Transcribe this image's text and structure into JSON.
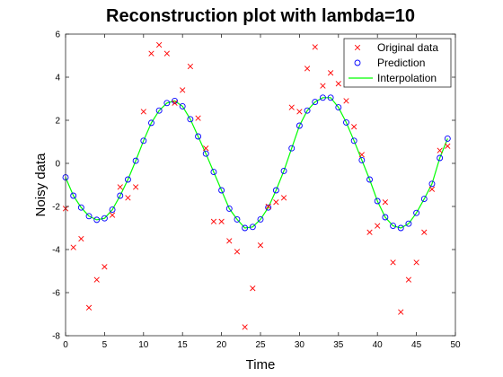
{
  "chart_data": {
    "type": "scatter",
    "title": "Reconstruction plot with lambda=10",
    "xlabel": "Time",
    "ylabel": "Noisy data",
    "xlim": [
      0,
      50
    ],
    "ylim": [
      -8,
      6
    ],
    "xticks": [
      0,
      5,
      10,
      15,
      20,
      25,
      30,
      35,
      40,
      45,
      50
    ],
    "yticks": [
      -8,
      -6,
      -4,
      -2,
      0,
      2,
      4,
      6
    ],
    "grid": false,
    "legend_position": "top-right",
    "series": [
      {
        "name": "Original data",
        "marker": "x",
        "color": "#ff0000",
        "x": [
          0,
          1,
          2,
          3,
          4,
          5,
          6,
          7,
          8,
          9,
          10,
          11,
          12,
          13,
          14,
          15,
          16,
          17,
          18,
          19,
          20,
          21,
          22,
          23,
          24,
          25,
          26,
          27,
          28,
          29,
          30,
          31,
          32,
          33,
          34,
          35,
          36,
          37,
          38,
          39,
          40,
          41,
          42,
          43,
          44,
          45,
          46,
          47,
          48,
          49
        ],
        "y": [
          -2.1,
          -3.9,
          -3.5,
          -6.7,
          -5.4,
          -4.8,
          -2.4,
          -1.1,
          -1.6,
          -1.1,
          2.4,
          5.1,
          5.5,
          5.1,
          2.8,
          3.4,
          4.5,
          2.1,
          0.7,
          -2.7,
          -2.7,
          -3.6,
          -4.1,
          -7.6,
          -5.8,
          -3.8,
          -2.0,
          -1.8,
          -1.6,
          2.6,
          2.4,
          4.4,
          5.4,
          3.6,
          4.2,
          3.7,
          2.9,
          1.7,
          0.4,
          -3.2,
          -2.9,
          -1.8,
          -4.6,
          -6.9,
          -5.4,
          -4.6,
          -3.2,
          -1.2,
          0.6,
          0.8
        ]
      },
      {
        "name": "Prediction",
        "marker": "o",
        "color": "#0000ff",
        "x": [
          0,
          1,
          2,
          3,
          4,
          5,
          6,
          7,
          8,
          9,
          10,
          11,
          12,
          13,
          14,
          15,
          16,
          17,
          18,
          19,
          20,
          21,
          22,
          23,
          24,
          25,
          26,
          27,
          28,
          29,
          30,
          31,
          32,
          33,
          34,
          35,
          36,
          37,
          38,
          39,
          40,
          41,
          42,
          43,
          44,
          45,
          46,
          47,
          48,
          49
        ],
        "y": [
          -0.65,
          -1.5,
          -2.05,
          -2.45,
          -2.62,
          -2.55,
          -2.15,
          -1.5,
          -0.75,
          0.12,
          1.05,
          1.88,
          2.45,
          2.8,
          2.9,
          2.65,
          2.05,
          1.25,
          0.45,
          -0.4,
          -1.25,
          -2.1,
          -2.6,
          -3.0,
          -2.95,
          -2.6,
          -2.05,
          -1.25,
          -0.35,
          0.7,
          1.75,
          2.45,
          2.85,
          3.05,
          3.05,
          2.6,
          1.9,
          1.05,
          0.15,
          -0.75,
          -1.75,
          -2.5,
          -2.9,
          -3.0,
          -2.8,
          -2.3,
          -1.65,
          -0.95,
          0.25,
          1.15
        ]
      },
      {
        "name": "Interpolation",
        "marker": "line",
        "color": "#00ff00",
        "x": [
          0,
          1,
          2,
          3,
          4,
          5,
          6,
          7,
          8,
          9,
          10,
          11,
          12,
          13,
          14,
          15,
          16,
          17,
          18,
          19,
          20,
          21,
          22,
          23,
          24,
          25,
          26,
          27,
          28,
          29,
          30,
          31,
          32,
          33,
          34,
          35,
          36,
          37,
          38,
          39,
          40,
          41,
          42,
          43,
          44,
          45,
          46,
          47,
          48,
          49
        ],
        "y": [
          -0.65,
          -1.5,
          -2.05,
          -2.45,
          -2.62,
          -2.55,
          -2.15,
          -1.5,
          -0.75,
          0.12,
          1.05,
          1.88,
          2.45,
          2.8,
          2.9,
          2.65,
          2.05,
          1.25,
          0.45,
          -0.4,
          -1.25,
          -2.1,
          -2.6,
          -3.0,
          -2.95,
          -2.6,
          -2.05,
          -1.25,
          -0.35,
          0.7,
          1.75,
          2.45,
          2.85,
          3.05,
          3.05,
          2.6,
          1.9,
          1.05,
          0.15,
          -0.75,
          -1.75,
          -2.5,
          -2.9,
          -3.0,
          -2.8,
          -2.3,
          -1.65,
          -0.95,
          0.25,
          1.15
        ]
      }
    ]
  }
}
